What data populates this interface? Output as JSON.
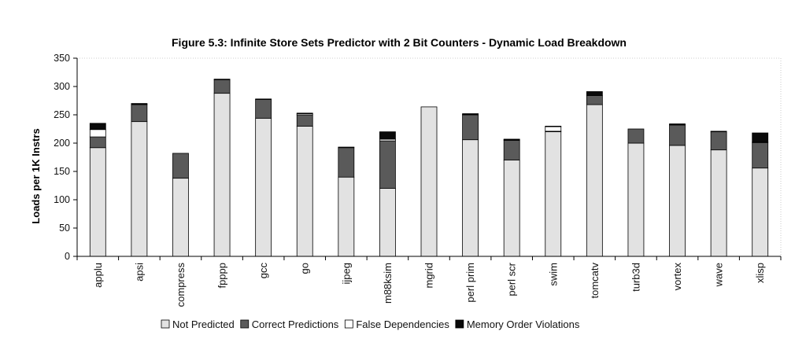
{
  "chart_data": {
    "type": "bar",
    "stacked": true,
    "title": "Figure 5.3: Infinite Store Sets Predictor with 2 Bit Counters - Dynamic Load Breakdown",
    "ylabel": "Loads per 1K Instrs",
    "xlabel": "",
    "ylim": [
      0,
      350
    ],
    "yticks": [
      0,
      50,
      100,
      150,
      200,
      250,
      300,
      350
    ],
    "grid": false,
    "legend_position": "bottom",
    "categories": [
      "applu",
      "apsi",
      "compress",
      "fpppp",
      "gcc",
      "go",
      "ijpeg",
      "m88ksim",
      "mgrid",
      "perl prim",
      "perl scr",
      "swim",
      "tomcatv",
      "turb3d",
      "vortex",
      "wave",
      "xlisp"
    ],
    "series": [
      {
        "name": "Not Predicted",
        "color": "#e2e2e2",
        "values": [
          192,
          238,
          138,
          288,
          244,
          230,
          140,
          120,
          264,
          206,
          170,
          220,
          268,
          200,
          196,
          188,
          156
        ]
      },
      {
        "name": "Correct Predictions",
        "color": "#5a5a5a",
        "values": [
          19,
          30,
          44,
          24,
          33,
          20,
          52,
          84,
          0,
          44,
          35,
          1,
          16,
          25,
          36,
          32,
          45
        ]
      },
      {
        "name": "False Dependencies",
        "color": "#ffffff",
        "values": [
          13,
          1,
          0,
          0,
          0,
          2,
          0,
          3,
          0,
          1,
          1,
          8,
          0,
          0,
          1,
          1,
          1
        ]
      },
      {
        "name": "Memory Order Violations",
        "color": "#0a0a0a",
        "values": [
          11,
          1,
          0,
          1,
          1,
          1,
          1,
          13,
          0,
          1,
          1,
          1,
          7,
          0,
          1,
          0,
          16
        ]
      }
    ]
  }
}
